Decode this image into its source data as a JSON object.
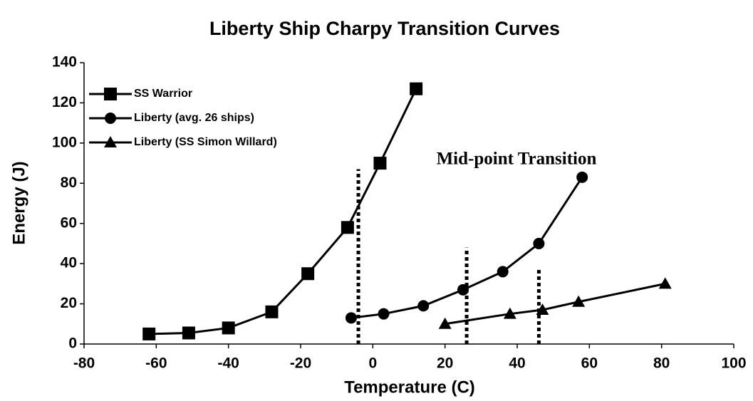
{
  "chart_data": {
    "type": "line",
    "title": "Liberty Ship Charpy Transition Curves",
    "xlabel": "Temperature  (C)",
    "ylabel": "Energy  (J)",
    "annotation": "Mid-point Transition",
    "xlim": [
      -80,
      100
    ],
    "xticks": [
      -80,
      -60,
      -40,
      -20,
      0,
      20,
      40,
      60,
      80,
      100
    ],
    "ylim": [
      0,
      140
    ],
    "yticks": [
      0,
      20,
      40,
      60,
      80,
      100,
      120,
      140
    ],
    "legend": "upper-left",
    "series": [
      {
        "name": "SS Warrior",
        "color": "#000000",
        "marker": "square",
        "x": [
          -62,
          -51,
          -40,
          -28,
          -18,
          -7,
          2,
          12
        ],
        "values": [
          5,
          5.5,
          8,
          16,
          35,
          58,
          90,
          127
        ]
      },
      {
        "name": "Liberty (avg. 26 ships)",
        "color": "#000000",
        "marker": "circle",
        "x": [
          -6,
          3,
          14,
          25,
          36,
          46,
          58
        ],
        "values": [
          13,
          15,
          19,
          27,
          36,
          50,
          83
        ]
      },
      {
        "name": "Liberty (SS Simon Willard)",
        "color": "#000000",
        "marker": "triangle",
        "x": [
          20,
          38,
          47,
          57,
          81
        ],
        "values": [
          10,
          15,
          17,
          21,
          30
        ]
      }
    ],
    "midpoints": {
      "x": [
        -4,
        26,
        46
      ],
      "values": [
        87,
        48,
        37
      ]
    }
  }
}
